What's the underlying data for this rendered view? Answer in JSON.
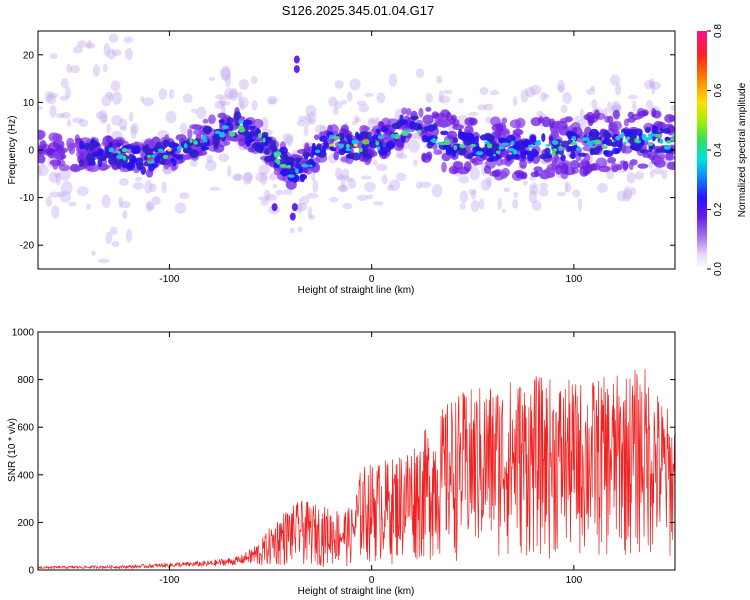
{
  "title": "S126.2025.345.01.04.G17",
  "colors": {
    "snr_line": "#ee2222",
    "frame": "#000000"
  },
  "chart_data": [
    {
      "type": "heatmap",
      "xlabel": "Height of straight line (km)",
      "ylabel": "Frequency (Hz)",
      "xlim": [
        -165,
        150
      ],
      "ylim": [
        -25,
        25
      ],
      "xticks": [
        -100,
        0,
        100
      ],
      "yticks": [
        -20,
        -10,
        0,
        10,
        20
      ],
      "colorbar": {
        "label": "Normalized spectral amplitude",
        "range": [
          0,
          0.8
        ],
        "ticks": [
          "0.0",
          "0.2",
          "0.4",
          "0.6",
          "0.8"
        ],
        "colormap": "rainbow"
      },
      "ridge": [
        {
          "x": -165,
          "y": 0
        },
        {
          "x": -130,
          "y": -1
        },
        {
          "x": -110,
          "y": -2
        },
        {
          "x": -95,
          "y": 0
        },
        {
          "x": -80,
          "y": 3
        },
        {
          "x": -65,
          "y": 5
        },
        {
          "x": -55,
          "y": 2
        },
        {
          "x": -45,
          "y": -2
        },
        {
          "x": -38,
          "y": -5
        },
        {
          "x": -30,
          "y": -2
        },
        {
          "x": -22,
          "y": 2
        },
        {
          "x": -10,
          "y": 1
        },
        {
          "x": 0,
          "y": 1
        },
        {
          "x": 10,
          "y": 3
        },
        {
          "x": 20,
          "y": 6
        },
        {
          "x": 30,
          "y": 3
        },
        {
          "x": 45,
          "y": 1
        },
        {
          "x": 70,
          "y": 0
        },
        {
          "x": 100,
          "y": 1
        },
        {
          "x": 125,
          "y": 2
        },
        {
          "x": 150,
          "y": 2
        }
      ]
    },
    {
      "type": "line",
      "xlabel": "Height of straight line (km)",
      "ylabel": "SNR (10 * v/v)",
      "xlim": [
        -165,
        150
      ],
      "ylim": [
        0,
        1000
      ],
      "xticks": [
        -100,
        0,
        100
      ],
      "yticks": [
        0,
        200,
        400,
        600,
        800,
        1000
      ],
      "series": [
        {
          "envelope": [
            {
              "x": -165,
              "y": 15
            },
            {
              "x": -120,
              "y": 20
            },
            {
              "x": -100,
              "y": 30
            },
            {
              "x": -80,
              "y": 40
            },
            {
              "x": -65,
              "y": 60
            },
            {
              "x": -55,
              "y": 120
            },
            {
              "x": -45,
              "y": 230
            },
            {
              "x": -35,
              "y": 280
            },
            {
              "x": -20,
              "y": 250
            },
            {
              "x": -10,
              "y": 250
            },
            {
              "x": -5,
              "y": 420
            },
            {
              "x": 10,
              "y": 450
            },
            {
              "x": 25,
              "y": 550
            },
            {
              "x": 40,
              "y": 700
            },
            {
              "x": 60,
              "y": 760
            },
            {
              "x": 80,
              "y": 780
            },
            {
              "x": 100,
              "y": 760
            },
            {
              "x": 120,
              "y": 780
            },
            {
              "x": 135,
              "y": 820
            },
            {
              "x": 150,
              "y": 600
            }
          ]
        }
      ]
    }
  ]
}
